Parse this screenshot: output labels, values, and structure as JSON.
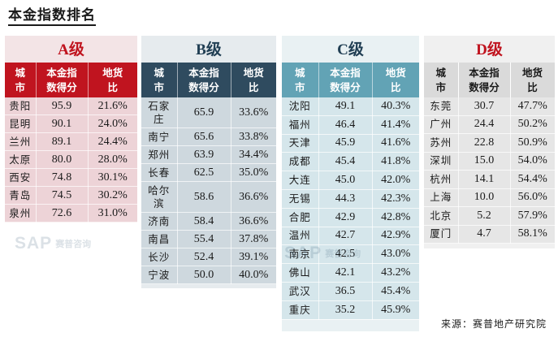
{
  "title": "本金指数排名",
  "headers": [
    "城市",
    "本金指数得分",
    "地货比"
  ],
  "tiers": {
    "a": {
      "level_letter": "A",
      "level_suffix": "级",
      "rows": [
        {
          "city": "贵阳",
          "score": "95.9",
          "ratio": "21.6%"
        },
        {
          "city": "昆明",
          "score": "90.1",
          "ratio": "24.0%"
        },
        {
          "city": "兰州",
          "score": "89.1",
          "ratio": "24.4%"
        },
        {
          "city": "太原",
          "score": "80.0",
          "ratio": "28.0%"
        },
        {
          "city": "西安",
          "score": "74.8",
          "ratio": "30.1%"
        },
        {
          "city": "青岛",
          "score": "74.5",
          "ratio": "30.2%"
        },
        {
          "city": "泉州",
          "score": "72.6",
          "ratio": "31.0%"
        }
      ]
    },
    "b": {
      "level_letter": "B",
      "level_suffix": "级",
      "rows": [
        {
          "city": "石家庄",
          "score": "65.9",
          "ratio": "33.6%"
        },
        {
          "city": "南宁",
          "score": "65.6",
          "ratio": "33.8%"
        },
        {
          "city": "郑州",
          "score": "63.9",
          "ratio": "34.4%"
        },
        {
          "city": "长春",
          "score": "62.5",
          "ratio": "35.0%"
        },
        {
          "city": "哈尔滨",
          "score": "58.6",
          "ratio": "36.6%"
        },
        {
          "city": "济南",
          "score": "58.4",
          "ratio": "36.6%"
        },
        {
          "city": "南昌",
          "score": "55.4",
          "ratio": "37.8%"
        },
        {
          "city": "长沙",
          "score": "52.4",
          "ratio": "39.1%"
        },
        {
          "city": "宁波",
          "score": "50.0",
          "ratio": "40.0%"
        }
      ]
    },
    "c": {
      "level_letter": "C",
      "level_suffix": "级",
      "rows": [
        {
          "city": "沈阳",
          "score": "49.1",
          "ratio": "40.3%"
        },
        {
          "city": "福州",
          "score": "46.4",
          "ratio": "41.4%"
        },
        {
          "city": "天津",
          "score": "45.9",
          "ratio": "41.6%"
        },
        {
          "city": "成都",
          "score": "45.4",
          "ratio": "41.8%"
        },
        {
          "city": "大连",
          "score": "45.0",
          "ratio": "42.0%"
        },
        {
          "city": "无锡",
          "score": "44.3",
          "ratio": "42.3%"
        },
        {
          "city": "合肥",
          "score": "42.9",
          "ratio": "42.8%"
        },
        {
          "city": "温州",
          "score": "42.7",
          "ratio": "42.9%"
        },
        {
          "city": "南京",
          "score": "42.5",
          "ratio": "43.0%"
        },
        {
          "city": "佛山",
          "score": "42.1",
          "ratio": "43.2%"
        },
        {
          "city": "武汉",
          "score": "36.5",
          "ratio": "45.4%"
        },
        {
          "city": "重庆",
          "score": "35.2",
          "ratio": "45.9%"
        }
      ]
    },
    "d": {
      "level_letter": "D",
      "level_suffix": "级",
      "rows": [
        {
          "city": "东莞",
          "score": "30.7",
          "ratio": "47.7%"
        },
        {
          "city": "广州",
          "score": "24.4",
          "ratio": "50.2%"
        },
        {
          "city": "苏州",
          "score": "22.8",
          "ratio": "50.9%"
        },
        {
          "city": "深圳",
          "score": "15.0",
          "ratio": "54.0%"
        },
        {
          "city": "杭州",
          "score": "14.1",
          "ratio": "54.4%"
        },
        {
          "city": "上海",
          "score": "10.0",
          "ratio": "56.0%"
        },
        {
          "city": "北京",
          "score": "5.2",
          "ratio": "57.9%"
        },
        {
          "city": "厦门",
          "score": "4.7",
          "ratio": "58.1%"
        }
      ]
    }
  },
  "source": "来源：赛普地产研究院",
  "watermark": {
    "logo": "SAP",
    "name": "赛普咨询"
  },
  "colors": {
    "a": "#c0141f",
    "b": "#2f4b5f",
    "c": "#62a3b5",
    "d": "#dadada"
  }
}
